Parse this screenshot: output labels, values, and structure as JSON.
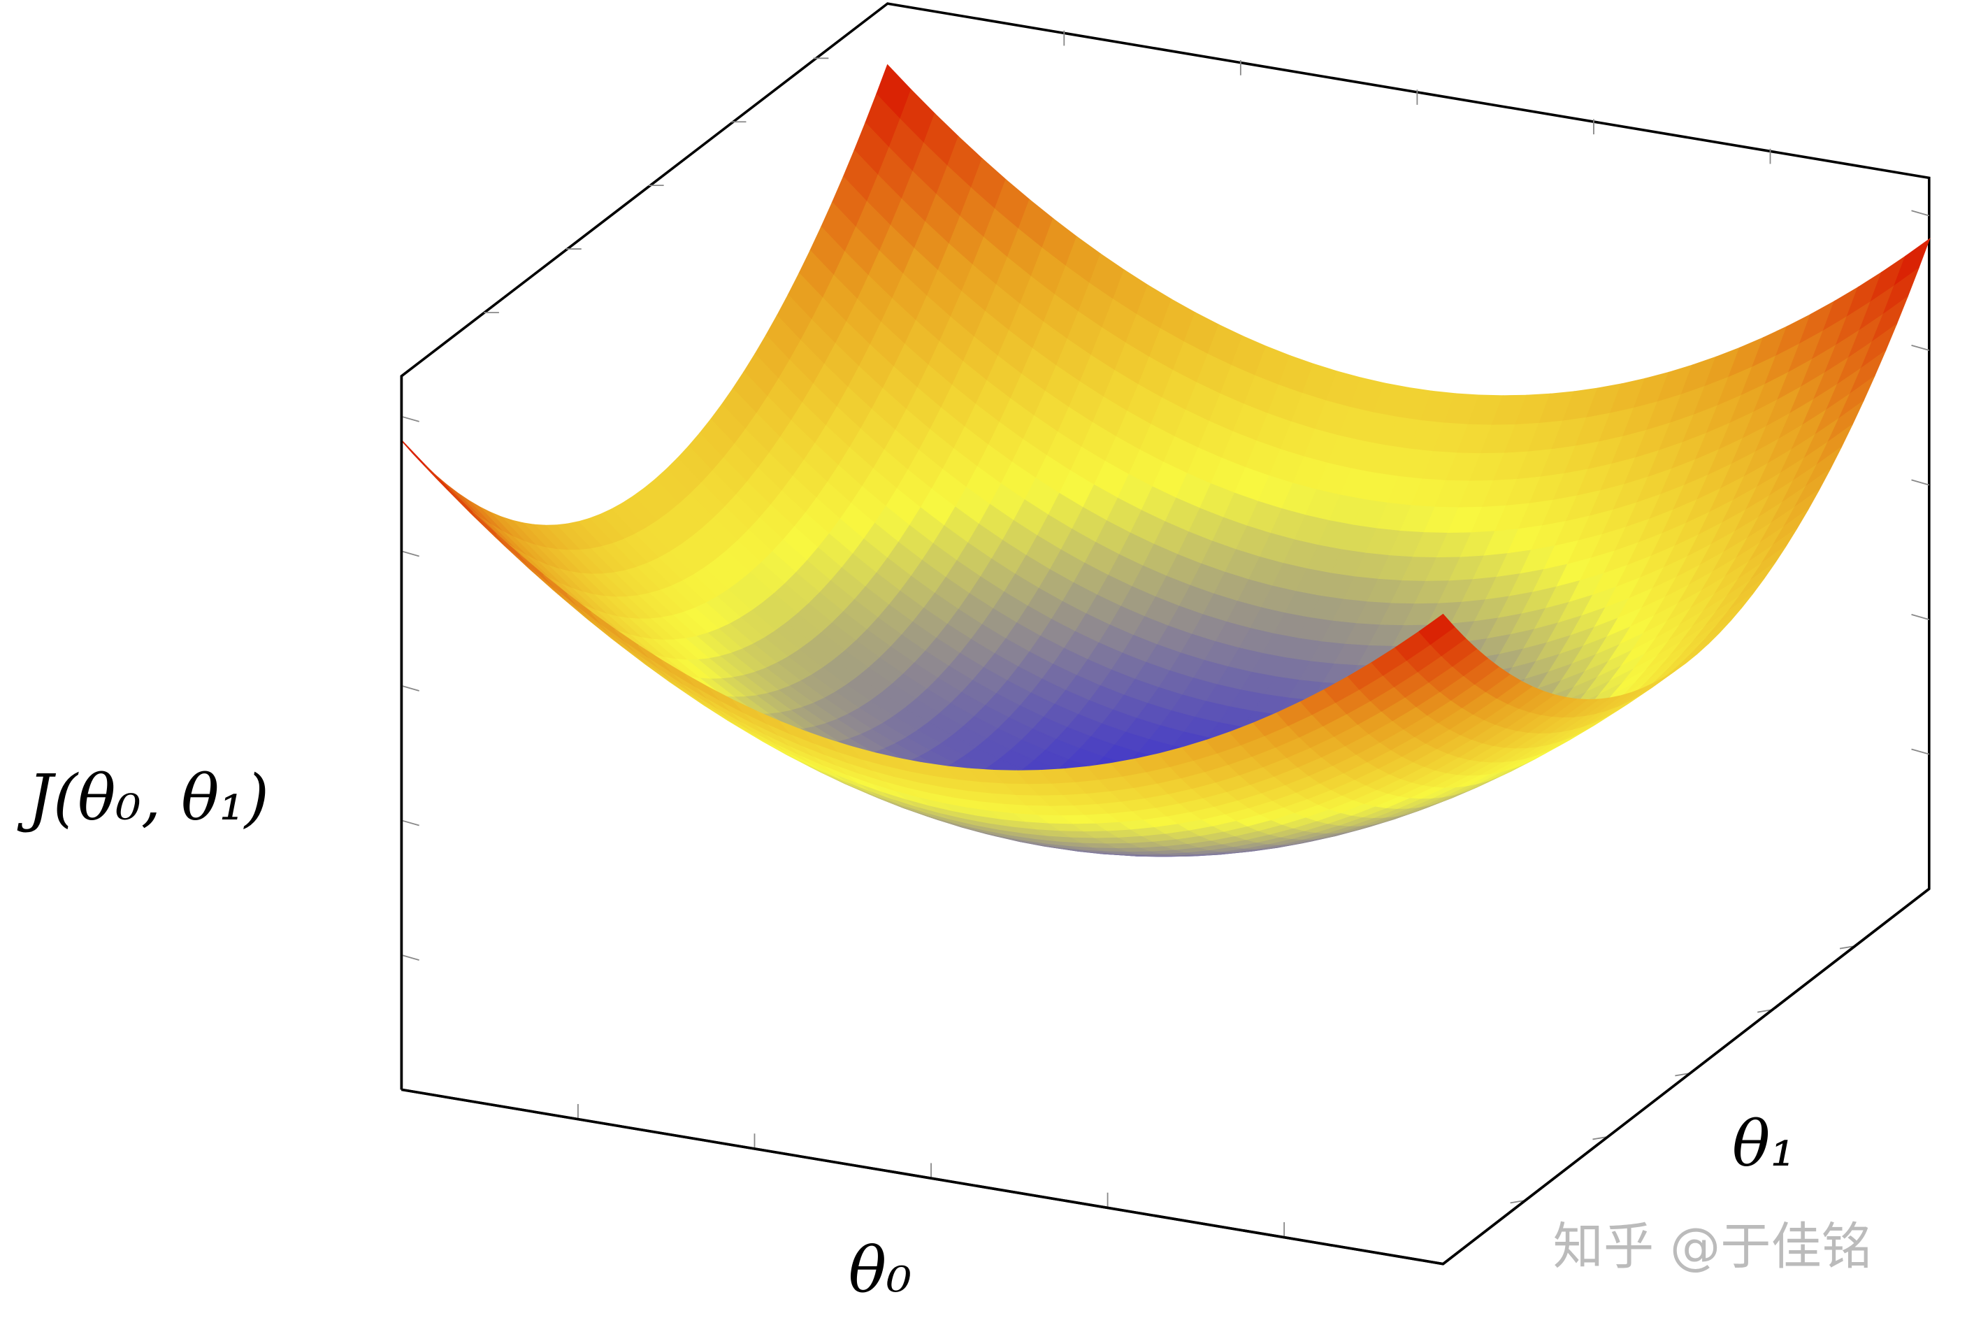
{
  "chart_data": {
    "type": "surface",
    "z_label": "J(θ₀, θ₁)",
    "x_label": "θ₀",
    "y_label": "θ₁",
    "colormap": [
      "#3a2fd0",
      "#f8f840",
      "#e8a020",
      "#d81000"
    ]
  },
  "watermark": "知乎 @于佳铭"
}
